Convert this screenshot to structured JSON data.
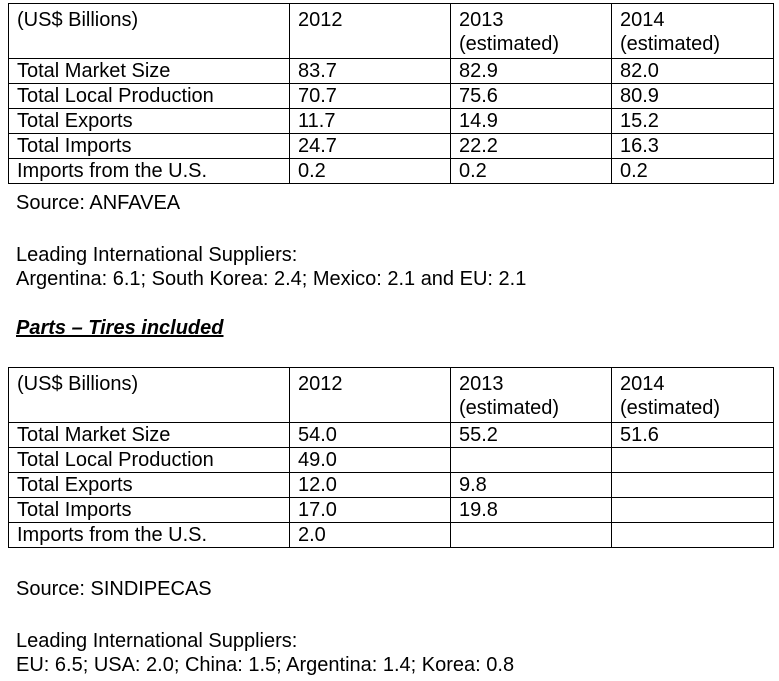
{
  "table1": {
    "header": [
      "(US$ Billions)",
      "2012",
      "2013\n(estimated)",
      "2014\n(estimated)"
    ],
    "rows": [
      [
        "Total Market Size",
        "83.7",
        "82.9",
        "82.0"
      ],
      [
        "Total Local Production",
        "70.7",
        "75.6",
        "80.9"
      ],
      [
        "Total Exports",
        "11.7",
        "14.9",
        "15.2"
      ],
      [
        "Total Imports",
        "24.7",
        "22.2",
        "16.3"
      ],
      [
        "Imports from the U.S.",
        "0.2",
        "0.2",
        "0.2"
      ]
    ],
    "source": "Source: ANFAVEA",
    "suppliers_label": "Leading International Suppliers:",
    "suppliers_text": "Argentina: 6.1; South Korea: 2.4; Mexico: 2.1 and EU: 2.1"
  },
  "parts_heading": "Parts – Tires included",
  "table2": {
    "header": [
      "(US$ Billions)",
      "2012",
      "2013\n(estimated)",
      "2014\n(estimated)"
    ],
    "rows": [
      [
        "Total Market Size",
        "54.0",
        "55.2",
        "51.6"
      ],
      [
        "Total Local Production",
        "49.0",
        "",
        ""
      ],
      [
        "Total Exports",
        "12.0",
        "9.8",
        ""
      ],
      [
        "Total Imports",
        "17.0",
        "19.8",
        ""
      ],
      [
        "Imports from the U.S.",
        " 2.0",
        "",
        ""
      ]
    ],
    "source": "Source: SINDIPECAS",
    "suppliers_label": "Leading International Suppliers:",
    "suppliers_text": "EU: 6.5; USA: 2.0; China: 1.5; Argentina: 1.4; Korea: 0.8"
  }
}
